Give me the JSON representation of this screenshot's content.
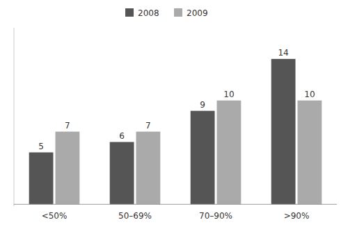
{
  "chart_data": {
    "type": "bar",
    "categories": [
      "<50%",
      "50–69%",
      "70–90%",
      ">90%"
    ],
    "series": [
      {
        "name": "2008",
        "color": "#555555",
        "values": [
          5,
          6,
          9,
          14
        ]
      },
      {
        "name": "2009",
        "color": "#aaaaaa",
        "values": [
          7,
          7,
          10,
          10
        ]
      }
    ],
    "ylim": [
      -0.18,
      17
    ],
    "data_labels": true,
    "tick_labels": "x",
    "legend": "upper center"
  }
}
